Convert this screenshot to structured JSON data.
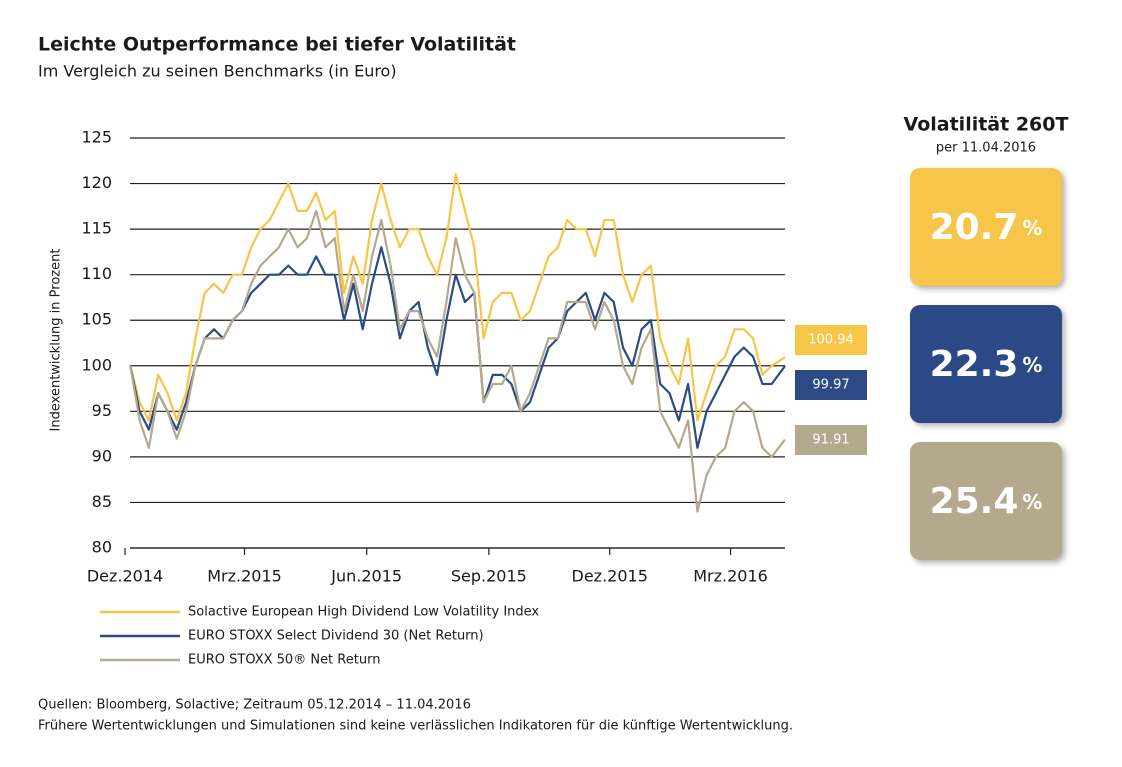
{
  "header": {
    "title": "Leichte Outperformance bei tiefer Volatilität",
    "subtitle": "Im Vergleich zu seinen Benchmarks (in Euro)"
  },
  "chart_data": {
    "type": "line",
    "y_label": "Indexentwicklung in Prozent",
    "x": [
      "2014-12-05",
      "2014-12-12",
      "2014-12-19",
      "2014-12-26",
      "2015-01-02",
      "2015-01-09",
      "2015-01-16",
      "2015-01-23",
      "2015-01-30",
      "2015-02-06",
      "2015-02-13",
      "2015-02-20",
      "2015-02-27",
      "2015-03-06",
      "2015-03-13",
      "2015-03-20",
      "2015-03-27",
      "2015-04-03",
      "2015-04-10",
      "2015-04-17",
      "2015-04-24",
      "2015-05-01",
      "2015-05-08",
      "2015-05-15",
      "2015-05-22",
      "2015-05-29",
      "2015-06-05",
      "2015-06-12",
      "2015-06-19",
      "2015-06-26",
      "2015-07-03",
      "2015-07-10",
      "2015-07-17",
      "2015-07-24",
      "2015-07-31",
      "2015-08-07",
      "2015-08-14",
      "2015-08-21",
      "2015-08-28",
      "2015-09-04",
      "2015-09-11",
      "2015-09-18",
      "2015-09-25",
      "2015-10-02",
      "2015-10-09",
      "2015-10-16",
      "2015-10-23",
      "2015-10-30",
      "2015-11-06",
      "2015-11-13",
      "2015-11-20",
      "2015-11-27",
      "2015-12-04",
      "2015-12-11",
      "2015-12-18",
      "2015-12-25",
      "2016-01-01",
      "2016-01-08",
      "2016-01-15",
      "2016-01-22",
      "2016-01-29",
      "2016-02-05",
      "2016-02-12",
      "2016-02-19",
      "2016-02-26",
      "2016-03-04",
      "2016-03-11",
      "2016-03-18",
      "2016-03-25",
      "2016-04-01",
      "2016-04-11"
    ],
    "series": [
      {
        "name": "Solactive European High Dividend Low Volatility Index",
        "color": "#f7c548",
        "values": [
          100,
          96,
          94,
          99,
          97,
          94,
          97,
          103,
          108,
          109,
          108,
          110,
          110,
          113,
          115,
          116,
          118,
          120,
          117,
          117,
          119,
          116,
          117,
          108,
          112,
          109,
          116,
          120,
          116,
          113,
          115,
          115,
          112,
          110,
          114,
          121,
          117,
          113,
          103,
          107,
          108,
          108,
          105,
          106,
          109,
          112,
          113,
          116,
          115,
          115,
          112,
          116,
          116,
          110,
          107,
          110,
          111,
          103,
          100,
          98,
          103,
          94,
          97,
          100,
          101,
          104,
          104,
          103,
          99,
          100,
          100.94
        ]
      },
      {
        "name": "EURO STOXX Select Dividend 30 (Net Return)",
        "color": "#2b4a86",
        "values": [
          100,
          95,
          93,
          97,
          95,
          93,
          96,
          100,
          103,
          104,
          103,
          105,
          106,
          108,
          109,
          110,
          110,
          111,
          110,
          110,
          112,
          110,
          110,
          105,
          109,
          104,
          109,
          113,
          109,
          103,
          106,
          107,
          102,
          99,
          105,
          110,
          107,
          108,
          96,
          99,
          99,
          98,
          95,
          96,
          99,
          102,
          103,
          106,
          107,
          108,
          105,
          108,
          107,
          102,
          100,
          104,
          105,
          98,
          97,
          94,
          98,
          91,
          95,
          97,
          99,
          101,
          102,
          101,
          98,
          98,
          99.97
        ]
      },
      {
        "name": "EURO STOXX 50® Net Return",
        "color": "#b4a98d",
        "values": [
          100,
          94,
          91,
          97,
          95,
          92,
          95,
          100,
          103,
          103,
          103,
          105,
          106,
          109,
          111,
          112,
          113,
          115,
          113,
          114,
          117,
          113,
          114,
          106,
          110,
          106,
          112,
          116,
          111,
          104,
          106,
          106,
          103,
          101,
          107,
          114,
          110,
          108,
          96,
          98,
          98,
          100,
          95,
          97,
          100,
          103,
          103,
          107,
          107,
          107,
          104,
          107,
          105,
          100,
          98,
          102,
          104,
          95,
          93,
          91,
          94,
          84,
          88,
          90,
          91,
          95,
          96,
          95,
          91,
          90,
          91.91
        ]
      }
    ],
    "xlim": [
      "2014-12-01",
      "2016-04-11"
    ],
    "xticks": [
      {
        "value": "2014-12-01",
        "label": "Dez.2014"
      },
      {
        "value": "2015-03-01",
        "label": "Mrz.2015"
      },
      {
        "value": "2015-06-01",
        "label": "Jun.2015"
      },
      {
        "value": "2015-09-01",
        "label": "Sep.2015"
      },
      {
        "value": "2015-12-01",
        "label": "Dez.2015"
      },
      {
        "value": "2016-03-01",
        "label": "Mrz.2016"
      }
    ],
    "ylim": [
      80,
      125
    ],
    "yticks": [
      80,
      85,
      90,
      95,
      100,
      105,
      110,
      115,
      120,
      125
    ],
    "grid": true
  },
  "volatility": {
    "title": "Volatilität 260T",
    "subtitle": "per 11.04.2016",
    "unit": "%",
    "values": [
      20.7,
      22.3,
      25.4
    ]
  },
  "footer": {
    "lines": [
      "Quellen: Bloomberg, Solactive; Zeitraum 05.12.2014 – 11.04.2016",
      "Frühere Wertentwicklungen und Simulationen sind keine verlässlichen Indikatoren für die künftige Wertentwicklung."
    ]
  }
}
